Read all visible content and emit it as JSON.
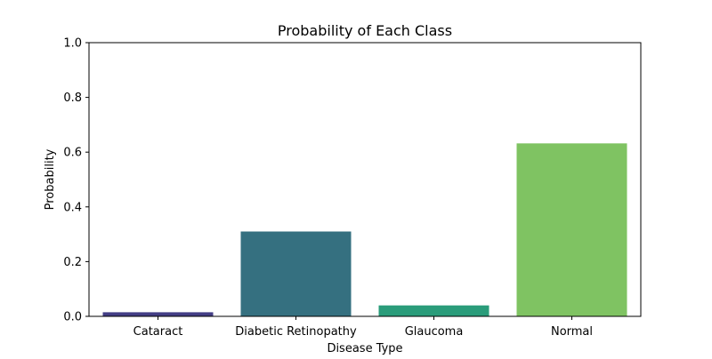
{
  "chart_data": {
    "type": "bar",
    "title": "Probability of Each Class",
    "xlabel": "Disease Type",
    "ylabel": "Probability",
    "categories": [
      "Cataract",
      "Diabetic Retinopathy",
      "Glaucoma",
      "Normal"
    ],
    "values": [
      0.015,
      0.31,
      0.04,
      0.632
    ],
    "colors": [
      "#433e85",
      "#357080",
      "#2a9c7a",
      "#7fc362"
    ],
    "ylim": [
      0,
      1.0
    ],
    "yticks": [
      "0.0",
      "0.2",
      "0.4",
      "0.6",
      "0.8",
      "1.0"
    ],
    "ytick_values": [
      0,
      0.2,
      0.4,
      0.6,
      0.8,
      1.0
    ],
    "grid": false,
    "legend": "none"
  }
}
